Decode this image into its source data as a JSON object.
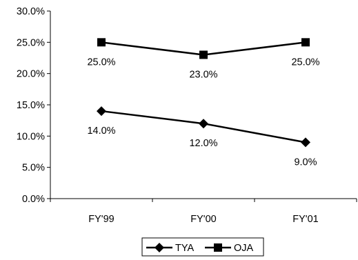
{
  "chart_data": {
    "type": "line",
    "categories": [
      "FY'99",
      "FY'00",
      "FY'01"
    ],
    "ylim": [
      0,
      30
    ],
    "yticks": [
      0,
      5,
      10,
      15,
      20,
      25,
      30
    ],
    "ytick_labels": [
      "0.0%",
      "5.0%",
      "10.0%",
      "15.0%",
      "20.0%",
      "25.0%",
      "30.0%"
    ],
    "grid": false,
    "legend_position": "bottom",
    "series": [
      {
        "name": "TYA",
        "marker": "diamond",
        "values": [
          14.0,
          12.0,
          9.0
        ],
        "labels": [
          "14.0%",
          "12.0%",
          "9.0%"
        ],
        "color": "#000000"
      },
      {
        "name": "OJA",
        "marker": "square",
        "values": [
          25.0,
          23.0,
          25.0
        ],
        "labels": [
          "25.0%",
          "23.0%",
          "25.0%"
        ],
        "color": "#000000"
      }
    ]
  }
}
